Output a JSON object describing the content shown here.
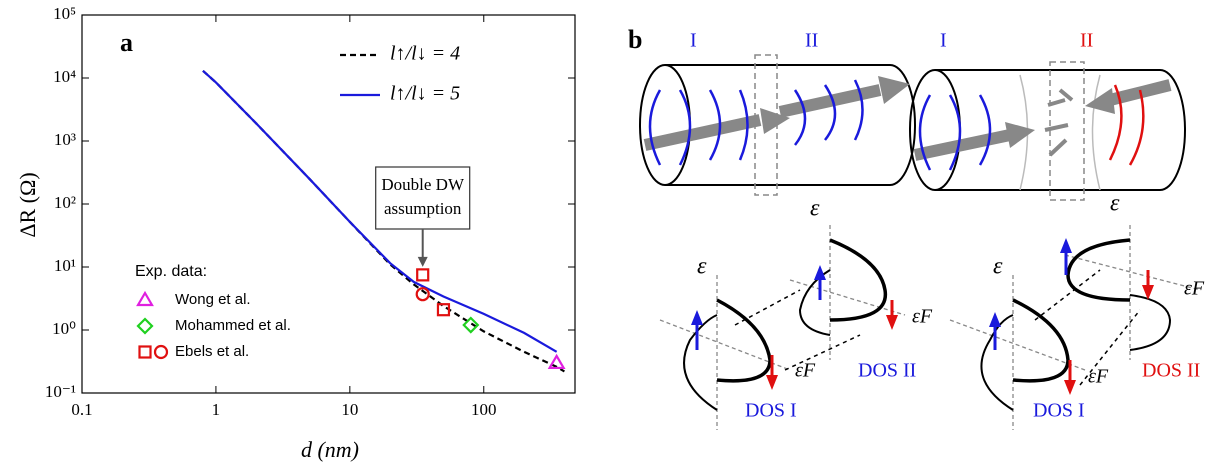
{
  "chart_data": {
    "type": "line",
    "panel_label": "a",
    "xlabel": "d (nm)",
    "ylabel": "ΔR  (Ω)",
    "xscale": "log",
    "yscale": "log",
    "xlim": [
      0.1,
      480
    ],
    "ylim": [
      0.1,
      100000
    ],
    "xticks": [
      0.1,
      1,
      10,
      100
    ],
    "yticks": [
      {
        "value": 0.1,
        "label": "10⁻¹"
      },
      {
        "value": 1,
        "label": "10⁰"
      },
      {
        "value": 10,
        "label": "10¹"
      },
      {
        "value": 100,
        "label": "10²"
      },
      {
        "value": 1000,
        "label": "10³"
      },
      {
        "value": 10000,
        "label": "10⁴"
      },
      {
        "value": 100000,
        "label": "10⁵"
      }
    ],
    "x": [
      0.8,
      1,
      2,
      5,
      10,
      20,
      30,
      50,
      100,
      200,
      350,
      400
    ],
    "series": [
      {
        "name": "l↑/l↓ = 4",
        "color": "#000000",
        "dash": true,
        "values": [
          13000,
          8500,
          1900,
          250,
          52,
          11,
          5.3,
          2.4,
          0.95,
          0.45,
          0.26,
          0.22
        ]
      },
      {
        "name": "l↑/l↓ = 5",
        "color": "#1a1adc",
        "dash": false,
        "values": [
          13000,
          8500,
          1900,
          250,
          52,
          11.5,
          5.8,
          3.4,
          1.8,
          0.9,
          0.45,
          null
        ]
      }
    ],
    "scatter_title": "Exp. data:",
    "scatter_series": [
      {
        "name": "Wong et al.",
        "color": "#e020e0",
        "markers": [
          "triangle"
        ],
        "x": [
          350
        ],
        "values": [
          0.3
        ]
      },
      {
        "name": "Mohammed et al.",
        "color": "#20d020",
        "markers": [
          "diamond"
        ],
        "x": [
          80
        ],
        "values": [
          1.2
        ]
      },
      {
        "name": "Ebels et al.",
        "color": "#e01010",
        "markers": [
          "square",
          "square",
          "circle"
        ],
        "x": [
          35,
          50,
          35
        ],
        "values": [
          7.5,
          2.1,
          3.7
        ]
      }
    ],
    "annotation": {
      "lines": [
        "Double DW",
        "assumption"
      ],
      "x": 35,
      "y": 7.5
    }
  },
  "panel_b": {
    "panel_label": "b",
    "labels": [
      "I",
      "II",
      "I",
      "II",
      "ε",
      "ε",
      "ε",
      "ε",
      "εF",
      "εF",
      "εF",
      "εF",
      "DOS I",
      "DOS II",
      "DOS I",
      "DOS II"
    ]
  }
}
